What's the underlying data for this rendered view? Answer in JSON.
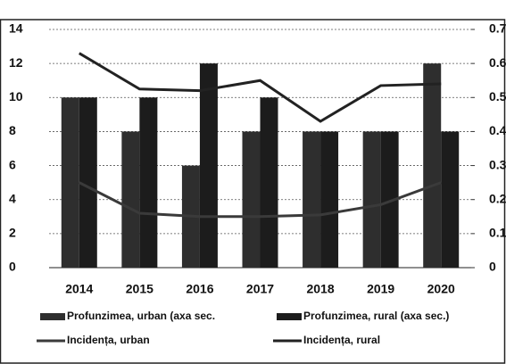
{
  "chart_data": {
    "type": "bar_line",
    "categories": [
      "2014",
      "2015",
      "2016",
      "2017",
      "2018",
      "2019",
      "2020"
    ],
    "series": [
      {
        "name": "Profunzimea, urban (axa sec.",
        "type": "bar",
        "axis": "y2",
        "color": "#2e2e2e",
        "values": [
          0.5,
          0.4,
          0.3,
          0.4,
          0.4,
          0.4,
          0.6
        ]
      },
      {
        "name": "Profunzimea, rural (axa sec.)",
        "type": "bar",
        "axis": "y2",
        "color": "#1c1c1c",
        "values": [
          0.5,
          0.5,
          0.6,
          0.5,
          0.4,
          0.4,
          0.4
        ]
      },
      {
        "name": "Incidența, urban",
        "type": "line",
        "color": "#3a3a3a",
        "values": [
          5,
          3.2,
          3,
          3,
          3.1,
          3.7,
          5
        ]
      },
      {
        "name": "Incidența, rural",
        "type": "line",
        "color": "#222222",
        "values": [
          12.6,
          10.5,
          10.4,
          11,
          8.6,
          10.7,
          10.8
        ]
      }
    ],
    "ylim": [
      0,
      14
    ],
    "yticks": [
      0,
      2,
      4,
      6,
      8,
      10,
      12,
      14
    ],
    "y2lim": [
      0,
      0.7
    ],
    "y2ticks": [
      0,
      0.1,
      0.2,
      0.3,
      0.4,
      0.5,
      0.6,
      0.7
    ],
    "grid": true
  }
}
